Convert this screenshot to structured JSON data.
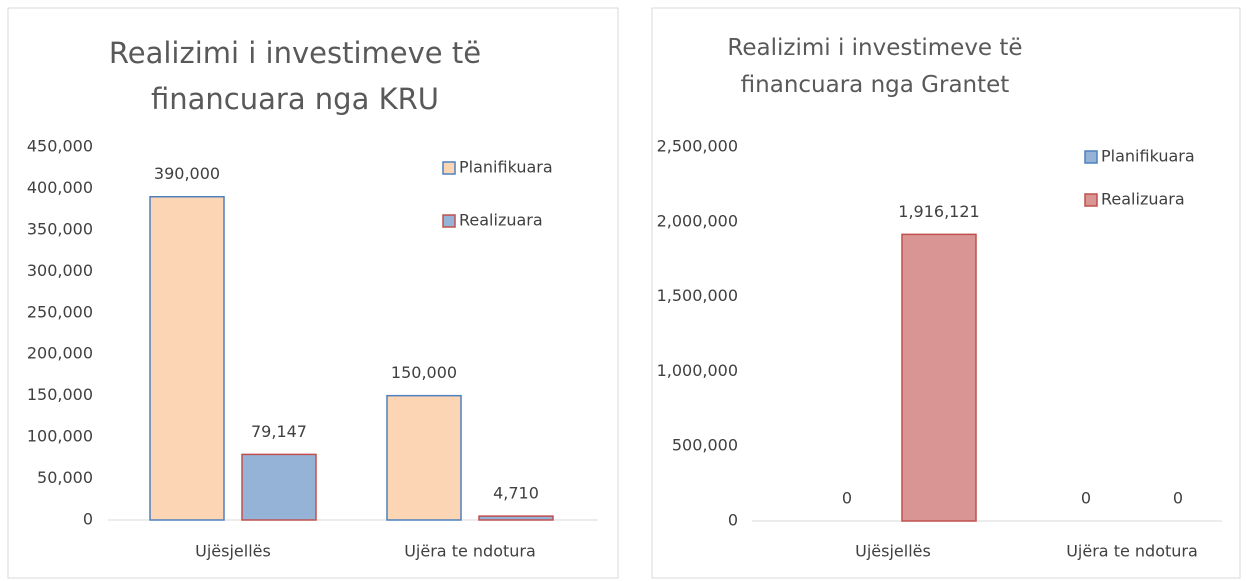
{
  "chart_data": [
    {
      "type": "bar",
      "title": "Realizimi i investimeve të financuara nga KRU",
      "categories": [
        "Ujësjellës",
        "Ujëra te ndotura"
      ],
      "series": [
        {
          "name": "Planifikuara",
          "color": "#fcd5b5",
          "border_color": "#4f81bd",
          "values": [
            390000,
            150000
          ],
          "value_labels": [
            "390,000",
            "150,000"
          ]
        },
        {
          "name": "Realizuara",
          "color": "#95b3d7",
          "border_color": "#c0504d",
          "values": [
            79147,
            4710
          ],
          "value_labels": [
            "79,147",
            "4,710"
          ]
        }
      ],
      "ylim": [
        0,
        450000
      ],
      "yticks": [
        0,
        {
          "value": 50000,
          "label": "50,000"
        },
        {
          "value": 100000,
          "label": "100,000"
        },
        {
          "value": 150000,
          "label": "150,000"
        },
        {
          "value": 200000,
          "label": "200,000"
        },
        {
          "value": 250000,
          "label": "250,000"
        },
        {
          "value": 300000,
          "label": "300,000"
        },
        {
          "value": 350000,
          "label": "350,000"
        },
        {
          "value": 400000,
          "label": "400,000"
        },
        {
          "value": 450000,
          "label": "450,000"
        }
      ],
      "grid": false,
      "legend": "right"
    },
    {
      "type": "bar",
      "title": "Realizimi i investimeve të financuara nga Grantet",
      "categories": [
        "Ujësjellës",
        "Ujëra te ndotura"
      ],
      "series": [
        {
          "name": "Planifikuara",
          "color": "#95b3d7",
          "border_color": "#4f81bd",
          "values": [
            0,
            0
          ]
        },
        {
          "name": "Realizuara",
          "color": "#d99594",
          "border_color": "#c0504d",
          "values": [
            1916121,
            0
          ],
          "value_labels": [
            "1,916,121",
            "0"
          ]
        }
      ],
      "ylim": [
        0,
        2500000
      ],
      "yticks": [
        0,
        {
          "value": 500000,
          "label": "500,000"
        },
        {
          "value": 1000000,
          "label": "1,000,000"
        },
        {
          "value": 1500000,
          "label": "1,500,000"
        },
        {
          "value": 2000000,
          "label": "2,000,000"
        },
        {
          "value": 2500000,
          "label": "2,500,000"
        }
      ],
      "grid": false,
      "legend": "right"
    }
  ]
}
